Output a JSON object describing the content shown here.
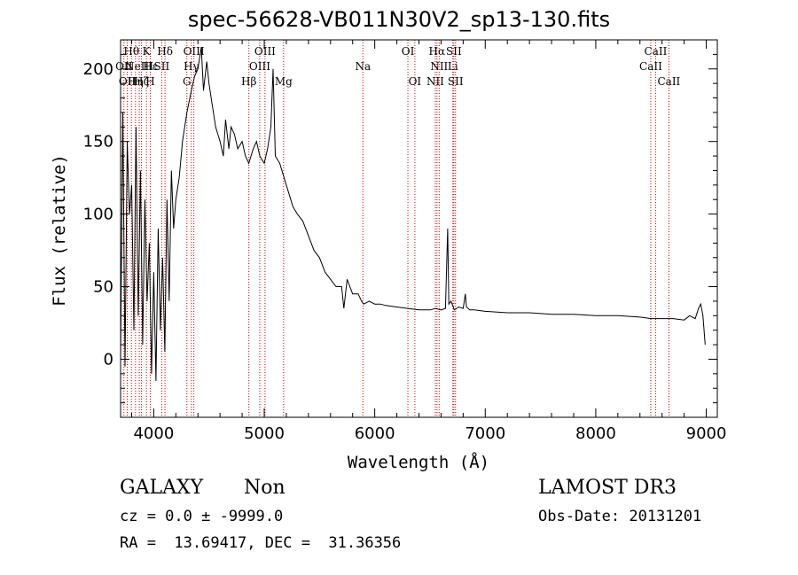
{
  "chart_data": {
    "type": "line",
    "title": "spec-56628-VB011N30V2_sp13-130.fits",
    "xlabel": "Wavelength (Å)",
    "ylabel": "Flux (relative)",
    "xlim": [
      3700,
      9100
    ],
    "ylim": [
      -40,
      220
    ],
    "xticks": [
      4000,
      5000,
      6000,
      7000,
      8000,
      9000
    ],
    "yticks": [
      0,
      50,
      100,
      150,
      200
    ],
    "grid": false,
    "line_color": "#000000",
    "marker_color": "#cc0000",
    "series": [
      {
        "x": [
          3700,
          3720,
          3740,
          3760,
          3780,
          3800,
          3820,
          3840,
          3860,
          3880,
          3900,
          3920,
          3940,
          3960,
          3980,
          4000,
          4020,
          4040,
          4060,
          4080,
          4100,
          4120,
          4140,
          4160,
          4180,
          4200,
          4230,
          4260,
          4300,
          4340,
          4370,
          4400,
          4430,
          4450,
          4480,
          4500,
          4530,
          4560,
          4600,
          4630,
          4650,
          4680,
          4700,
          4730,
          4760,
          4800,
          4830,
          4860,
          4900,
          4930,
          4960,
          5000,
          5030,
          5060,
          5080,
          5100,
          5140,
          5200,
          5260,
          5300,
          5350,
          5400,
          5450,
          5500,
          5550,
          5600,
          5650,
          5700,
          5720,
          5750,
          5800,
          5850,
          5880,
          5900,
          5950,
          6000,
          6050,
          6100,
          6200,
          6300,
          6400,
          6500,
          6550,
          6600,
          6640,
          6660,
          6670,
          6690,
          6720,
          6760,
          6800,
          6820,
          6830,
          6860,
          6900,
          7000,
          7200,
          7400,
          7600,
          7800,
          8000,
          8200,
          8400,
          8500,
          8600,
          8700,
          8800,
          8850,
          8900,
          8930,
          8950,
          8970,
          8990
        ],
        "y": [
          0,
          170,
          -5,
          150,
          100,
          120,
          20,
          160,
          30,
          130,
          10,
          110,
          40,
          80,
          -10,
          60,
          -15,
          90,
          20,
          70,
          5,
          110,
          40,
          130,
          90,
          110,
          125,
          150,
          170,
          185,
          195,
          200,
          215,
          185,
          205,
          190,
          175,
          160,
          150,
          140,
          165,
          145,
          160,
          155,
          145,
          150,
          140,
          135,
          145,
          150,
          140,
          135,
          145,
          160,
          200,
          140,
          135,
          120,
          105,
          100,
          95,
          85,
          75,
          70,
          60,
          55,
          50,
          50,
          35,
          55,
          45,
          45,
          40,
          38,
          40,
          38,
          38,
          37,
          36,
          35,
          34,
          34,
          35,
          34,
          35,
          90,
          38,
          40,
          34,
          36,
          35,
          45,
          36,
          34,
          34,
          33,
          32,
          32,
          31,
          31,
          30,
          30,
          29,
          28,
          28,
          28,
          27,
          30,
          28,
          35,
          38,
          30,
          10
        ]
      }
    ],
    "lines": [
      {
        "x": 3730,
        "label": "OII",
        "row": 2
      },
      {
        "x": 3760,
        "label": "OII",
        "row": 3
      },
      {
        "x": 3798,
        "label": "Hθ",
        "row": 1
      },
      {
        "x": 3835,
        "label": "Hη",
        "row": 3
      },
      {
        "x": 3869,
        "label": "NeIII",
        "row": 2
      },
      {
        "x": 3889,
        "label": "Hζ",
        "row": 3
      },
      {
        "x": 3934,
        "label": "K",
        "row": 1
      },
      {
        "x": 3969,
        "label": "H",
        "row": 3
      },
      {
        "x": 3970,
        "label": "Hε",
        "row": 2
      },
      {
        "x": 4072,
        "label": "SII",
        "row": 2
      },
      {
        "x": 4102,
        "label": "Hδ",
        "row": 1
      },
      {
        "x": 4300,
        "label": "G",
        "row": 3
      },
      {
        "x": 4340,
        "label": "Hγ",
        "row": 2
      },
      {
        "x": 4363,
        "label": "OIII",
        "row": 1
      },
      {
        "x": 4861,
        "label": "Hβ",
        "row": 3
      },
      {
        "x": 4959,
        "label": "OIII",
        "row": 2
      },
      {
        "x": 5007,
        "label": "OIII",
        "row": 1
      },
      {
        "x": 5175,
        "label": "Mg",
        "row": 3
      },
      {
        "x": 5893,
        "label": "Na",
        "row": 2
      },
      {
        "x": 6300,
        "label": "OI",
        "row": 1
      },
      {
        "x": 6363,
        "label": "OI",
        "row": 3
      },
      {
        "x": 6548,
        "label": "NII",
        "row": 3
      },
      {
        "x": 6563,
        "label": "Hα",
        "row": 1
      },
      {
        "x": 6583,
        "label": "NII",
        "row": 2
      },
      {
        "x": 6707,
        "label": "Li",
        "row": 2
      },
      {
        "x": 6716,
        "label": "SII",
        "row": 1
      },
      {
        "x": 6731,
        "label": "SII",
        "row": 3
      },
      {
        "x": 8498,
        "label": "CaII",
        "row": 2
      },
      {
        "x": 8542,
        "label": "CaII",
        "row": 1
      },
      {
        "x": 8662,
        "label": "CaII",
        "row": 3
      }
    ]
  },
  "info": {
    "class": "GALAXY",
    "subclass": "Non",
    "survey": "LAMOST DR3",
    "cz": "cz = 0.0 ± -9999.0",
    "obs_date": "Obs-Date: 20131201",
    "radec": "RA =  13.69417, DEC =  31.36356"
  }
}
